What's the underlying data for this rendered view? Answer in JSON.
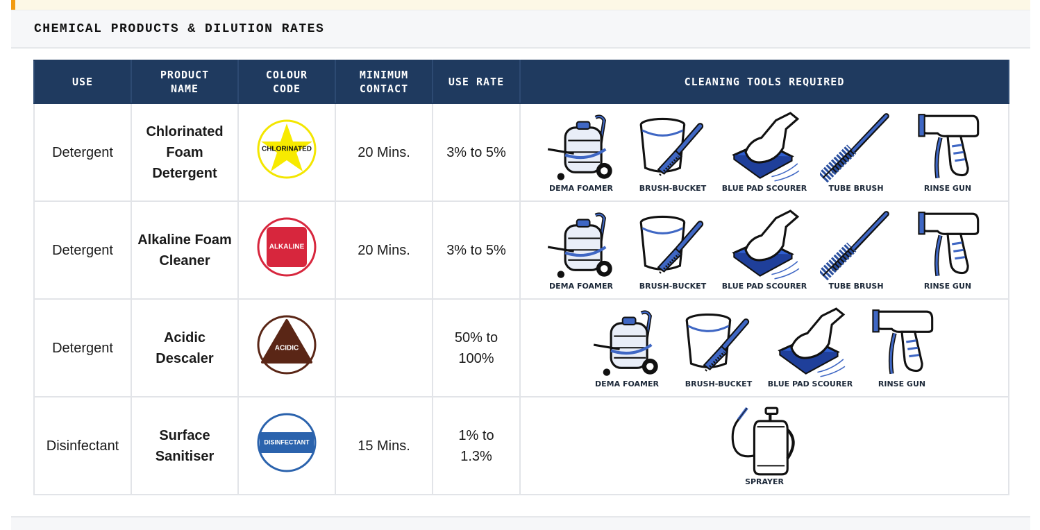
{
  "section": {
    "title": "CHEMICAL PRODUCTS & DILUTION RATES"
  },
  "table": {
    "headers": [
      "USE",
      "PRODUCT NAME",
      "COLOUR CODE",
      "MINIMUM CONTACT",
      "USE RATE",
      "CLEANING TOOLS REQUIRED"
    ],
    "rows": [
      {
        "use": "Detergent",
        "product": "Chlorinated Foam Detergent",
        "colour_code": "CHLORINATED",
        "contact": "20 Mins.",
        "rate": "3% to 5%",
        "tools": [
          "DEMA FOAMER",
          "BRUSH-BUCKET",
          "BLUE PAD SCOURER",
          "TUBE BRUSH",
          "RINSE GUN"
        ]
      },
      {
        "use": "Detergent",
        "product": "Alkaline Foam Cleaner",
        "colour_code": "ALKALINE",
        "contact": "20 Mins.",
        "rate": "3% to 5%",
        "tools": [
          "DEMA FOAMER",
          "BRUSH-BUCKET",
          "BLUE PAD SCOURER",
          "TUBE BRUSH",
          "RINSE GUN"
        ]
      },
      {
        "use": "Detergent",
        "product": "Acidic Descaler",
        "colour_code": "ACIDIC",
        "rate": "50% to 100%",
        "tools": [
          "DEMA FOAMER",
          "BRUSH-BUCKET",
          "BLUE PAD SCOURER",
          "RINSE GUN"
        ]
      },
      {
        "use": "Disinfectant",
        "product": "Surface Sanitiser",
        "colour_code": "DISINFECTANT",
        "contact": "15 Mins.",
        "rate": "1% to 1.3%",
        "tools": [
          "SPRAYER"
        ]
      }
    ]
  }
}
